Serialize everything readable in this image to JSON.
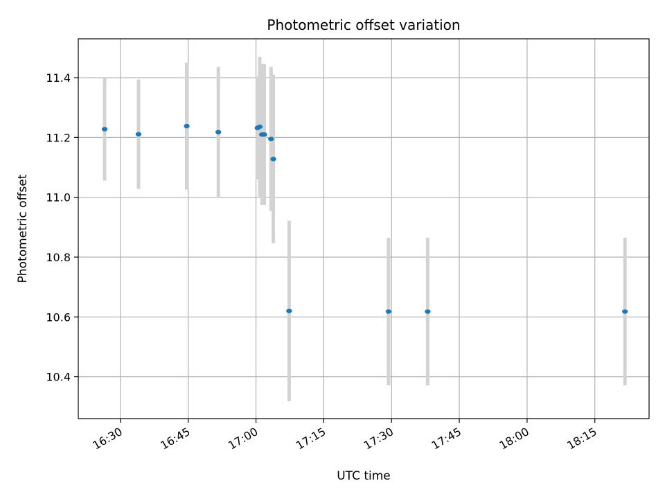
{
  "chart_data": {
    "type": "scatter",
    "title": "Photometric offset variation",
    "xlabel": "UTC time",
    "ylabel": "Photometric offset",
    "x_axis": "time",
    "xlim": [
      "16:20:40",
      "18:27:00"
    ],
    "ylim": [
      10.26,
      11.53
    ],
    "xticks": [
      "16:30",
      "16:45",
      "17:00",
      "17:15",
      "17:30",
      "17:45",
      "18:00",
      "18:15"
    ],
    "yticks": [
      10.4,
      10.6,
      10.8,
      11.0,
      11.2,
      11.4
    ],
    "ytick_labels": [
      "10.4",
      "10.6",
      "10.8",
      "11.0",
      "11.2",
      "11.4"
    ],
    "grid": true,
    "marker_color": "#1f77b4",
    "errorbar_color": "#d3d3d3",
    "points": [
      {
        "x": "16:26:30",
        "y": 11.228,
        "err": 0.172
      },
      {
        "x": "16:34:00",
        "y": 11.211,
        "err": 0.183
      },
      {
        "x": "16:44:40",
        "y": 11.238,
        "err": 0.212
      },
      {
        "x": "16:51:40",
        "y": 11.218,
        "err": 0.218
      },
      {
        "x": "17:00:20",
        "y": 11.232,
        "err": 0.172
      },
      {
        "x": "17:00:50",
        "y": 11.236,
        "err": 0.234
      },
      {
        "x": "17:01:20",
        "y": 11.21,
        "err": 0.236
      },
      {
        "x": "17:01:50",
        "y": 11.21,
        "err": 0.236
      },
      {
        "x": "17:03:20",
        "y": 11.195,
        "err": 0.241
      },
      {
        "x": "17:03:50",
        "y": 11.128,
        "err": 0.282
      },
      {
        "x": "17:07:20",
        "y": 10.62,
        "err": 0.302
      },
      {
        "x": "17:29:20",
        "y": 10.618,
        "err": 0.247
      },
      {
        "x": "17:38:00",
        "y": 10.618,
        "err": 0.247
      },
      {
        "x": "18:21:40",
        "y": 10.618,
        "err": 0.247
      }
    ]
  }
}
